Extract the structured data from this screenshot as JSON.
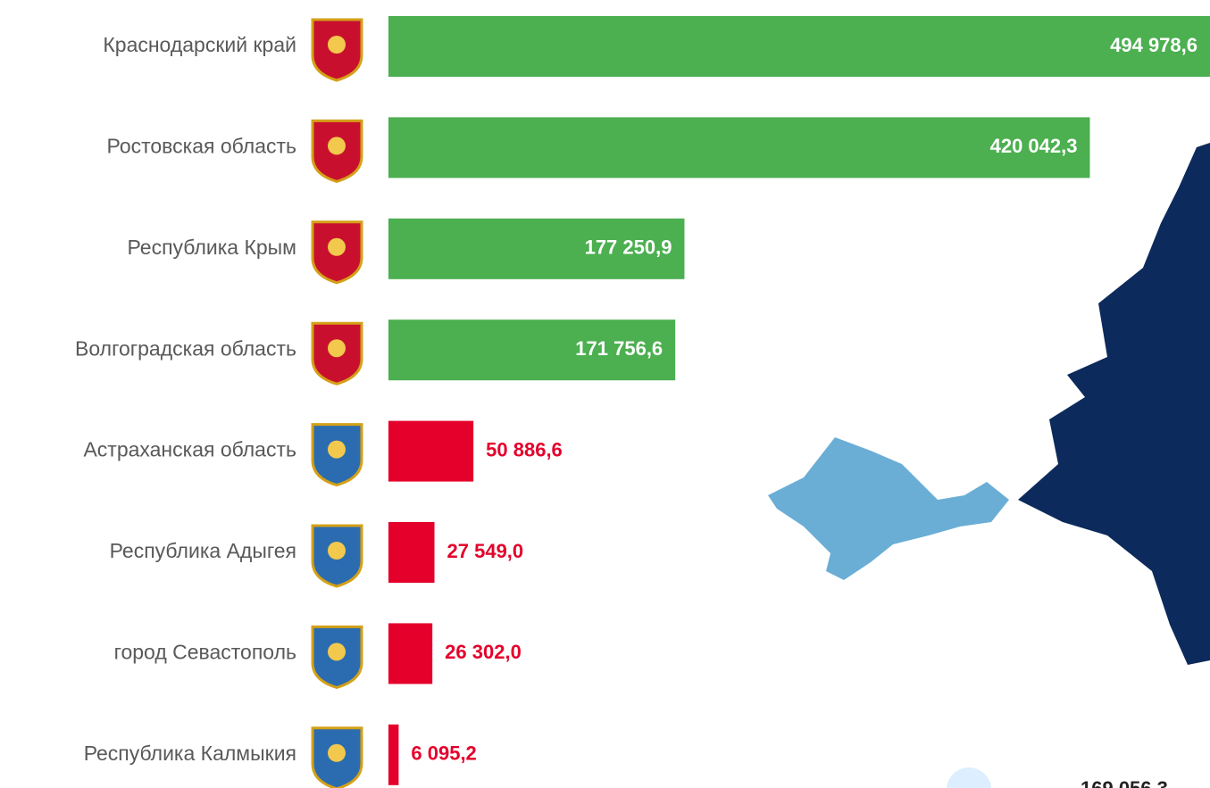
{
  "chart_data": {
    "type": "bar",
    "orientation": "horizontal",
    "categories": [
      "Краснодарский край",
      "Ростовская область",
      "Республика Крым",
      "Волгоградская область",
      "Астраханская область",
      "Республика Адыгея",
      "город Севастополь",
      "Республика Калмыкия"
    ],
    "values": [
      494978.6,
      420042.3,
      177250.9,
      171756.6,
      50886.6,
      27549.0,
      26302.0,
      6095.2
    ],
    "value_labels": [
      "494 978,6",
      "420 042,3",
      "177 250,9",
      "171 756,6",
      "50 886,6",
      "27 549,0",
      "26 302,0",
      "6 095,2"
    ],
    "colors": [
      "#4caf50",
      "#4caf50",
      "#4caf50",
      "#4caf50",
      "#e4002b",
      "#e4002b",
      "#e4002b",
      "#e4002b"
    ],
    "xlim": [
      0,
      500000
    ],
    "annotation": "169 056,3"
  }
}
